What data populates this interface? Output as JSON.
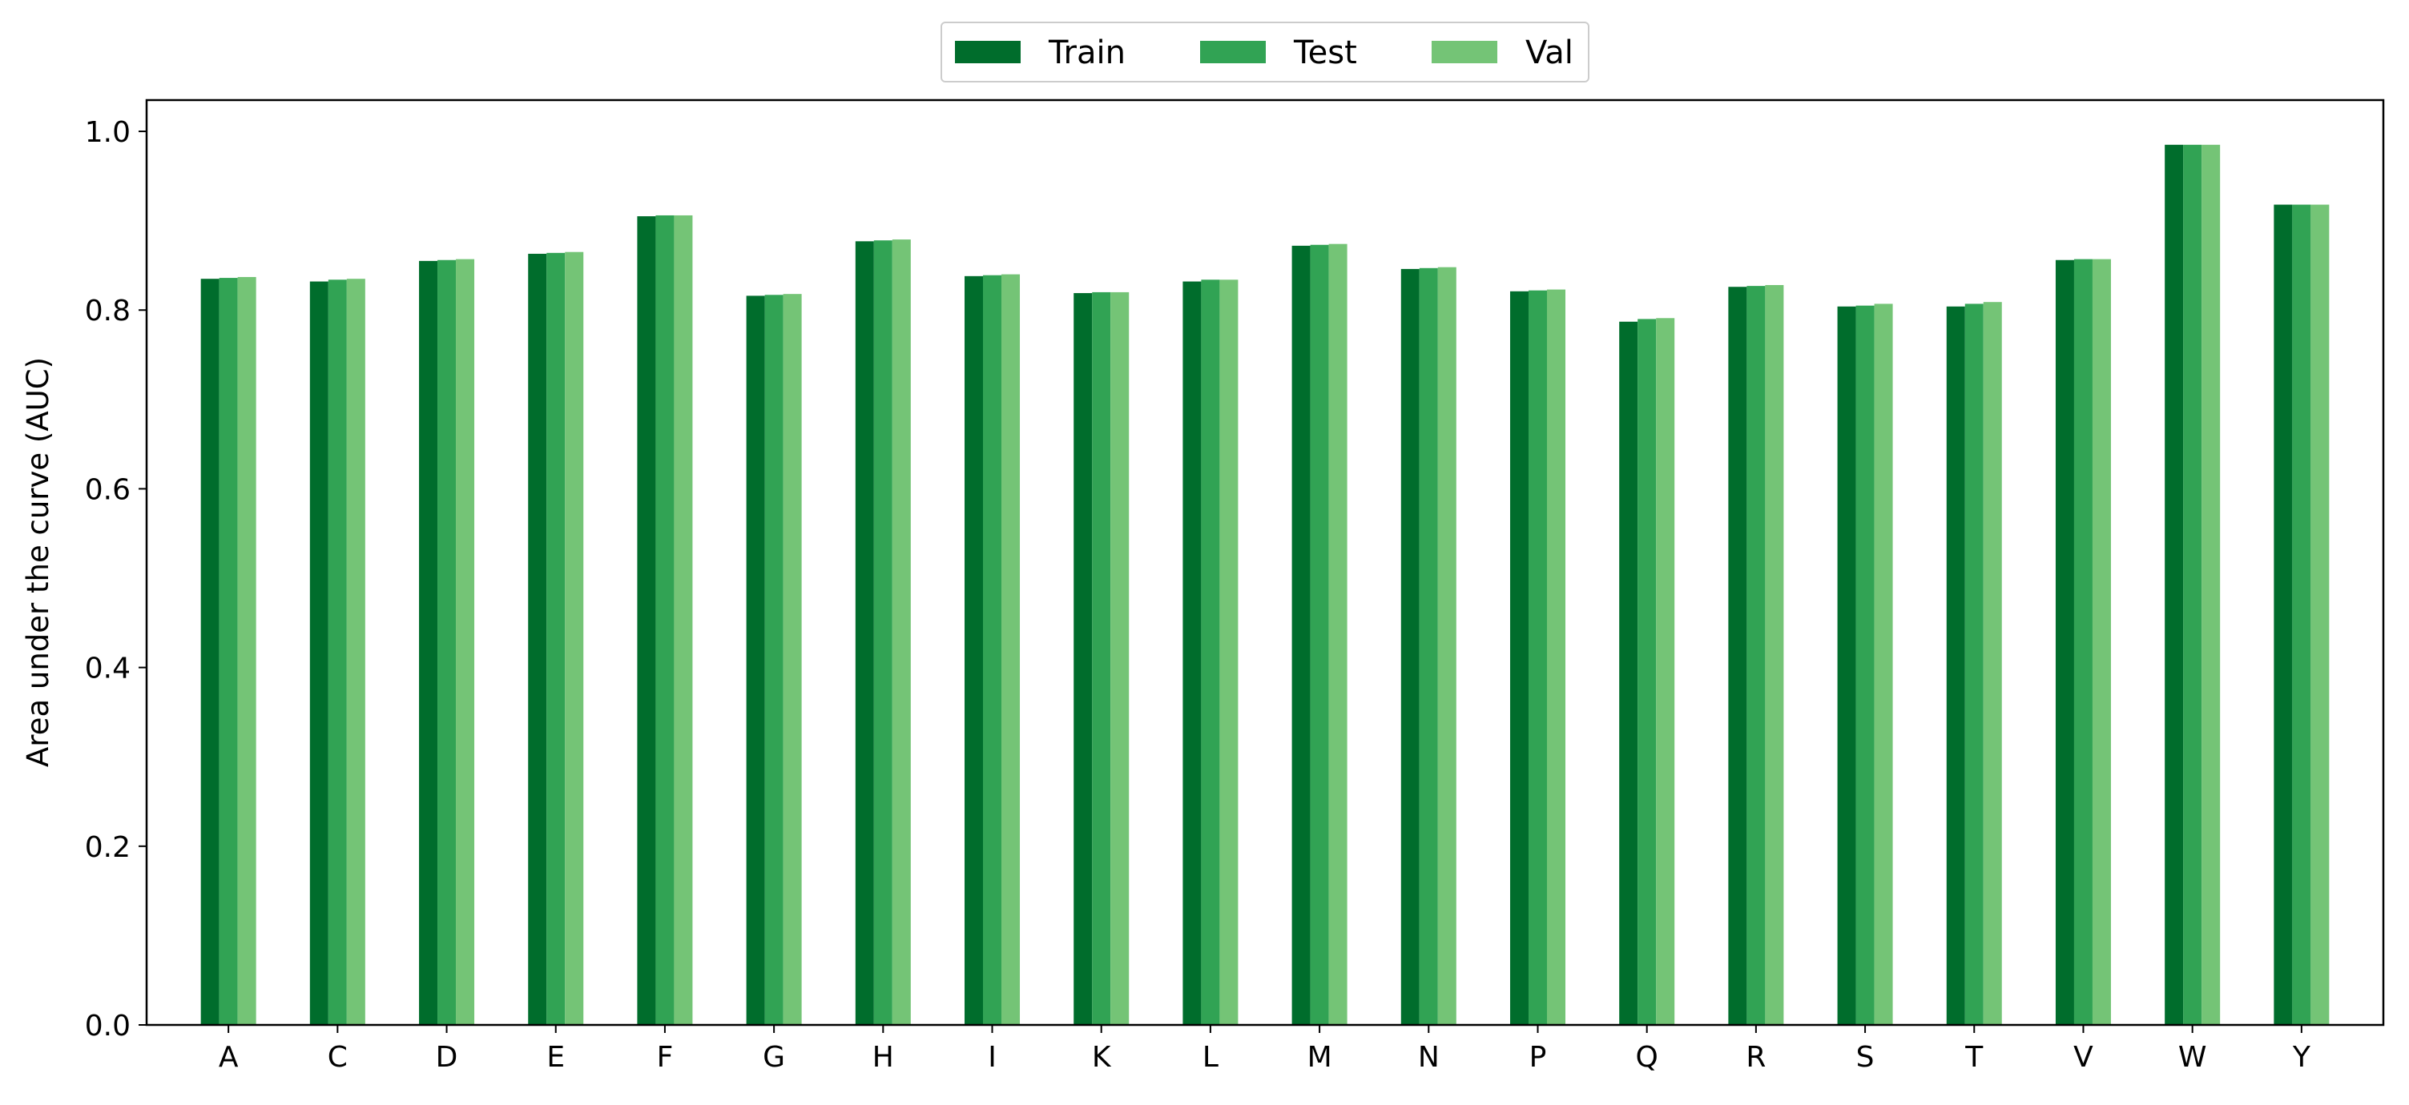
{
  "chart_data": {
    "type": "bar",
    "title": "",
    "xlabel": "",
    "ylabel": "Area under the curve (AUC)",
    "categories": [
      "A",
      "C",
      "D",
      "E",
      "F",
      "G",
      "H",
      "I",
      "K",
      "L",
      "M",
      "N",
      "P",
      "Q",
      "R",
      "S",
      "T",
      "V",
      "W",
      "Y"
    ],
    "series": [
      {
        "name": "Train",
        "color": "#006d2c",
        "values": [
          0.835,
          0.832,
          0.855,
          0.863,
          0.905,
          0.816,
          0.877,
          0.838,
          0.819,
          0.832,
          0.872,
          0.846,
          0.821,
          0.787,
          0.826,
          0.804,
          0.804,
          0.856,
          0.985,
          0.918
        ]
      },
      {
        "name": "Test",
        "color": "#31a354",
        "values": [
          0.836,
          0.834,
          0.856,
          0.864,
          0.906,
          0.817,
          0.878,
          0.839,
          0.82,
          0.834,
          0.873,
          0.847,
          0.822,
          0.79,
          0.827,
          0.805,
          0.807,
          0.857,
          0.985,
          0.918
        ]
      },
      {
        "name": "Val",
        "color": "#74c476",
        "values": [
          0.837,
          0.835,
          0.857,
          0.865,
          0.906,
          0.818,
          0.879,
          0.84,
          0.82,
          0.834,
          0.874,
          0.848,
          0.823,
          0.791,
          0.828,
          0.807,
          0.809,
          0.857,
          0.985,
          0.918
        ]
      }
    ],
    "ylim": [
      0,
      1.035
    ],
    "yticks": [
      0.0,
      0.2,
      0.4,
      0.6,
      0.8,
      1.0
    ],
    "ytick_labels": [
      "0.0",
      "0.2",
      "0.4",
      "0.6",
      "0.8",
      "1.0"
    ],
    "grid": false,
    "legend": "top-center, outside plot, horizontal"
  }
}
